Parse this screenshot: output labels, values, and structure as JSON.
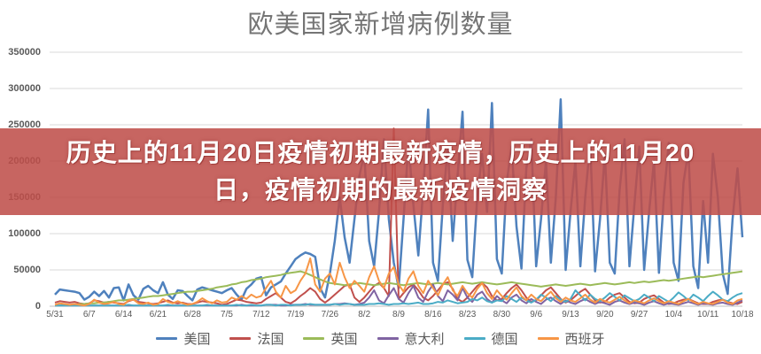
{
  "page": {
    "background": "#ffffff"
  },
  "chart": {
    "title": "欧美国家新增病例数量",
    "title_color": "#757575",
    "axis_label_color": "#595959",
    "grid_color": "#d9d9d9",
    "axis_line_color": "#bfbfbf"
  },
  "banner": {
    "line1": "历史上的11月20日疫情初期最新疫情，历史上的11月20",
    "line2": "日，疫情初期的最新疫情洞察",
    "background_color": "#bf4e49",
    "opacity": 0.87,
    "text_color": "#ffffff"
  },
  "chart_data": {
    "type": "line",
    "title": "欧美国家新增病例数量",
    "xlabel": "",
    "ylabel": "",
    "grid": true,
    "legend_position": "bottom",
    "ylim": [
      0,
      350000
    ],
    "y_ticks": [
      0,
      50000,
      100000,
      150000,
      200000,
      250000,
      300000,
      350000
    ],
    "x_tick_labels": [
      "5/31",
      "6/7",
      "6/14",
      "6/21",
      "6/28",
      "7/5",
      "7/12",
      "7/19",
      "7/26",
      "8/2",
      "8/9",
      "8/16",
      "8/23",
      "8/30",
      "9/6",
      "9/13",
      "9/20",
      "9/27",
      "10/4",
      "10/11",
      "10/18"
    ],
    "x_unit": "date (daily points, 5/31–10/18)",
    "values_unit": "new cases per day, stored in thousands",
    "unit_scale": 1000,
    "series": [
      {
        "id": "us",
        "name": "美国",
        "color": "#4f81bd",
        "values": [
          16,
          23,
          22,
          21,
          20,
          18,
          9,
          13,
          20,
          14,
          21,
          12,
          25,
          26,
          8,
          30,
          15,
          9,
          24,
          28,
          22,
          18,
          33,
          16,
          10,
          22,
          21,
          14,
          8,
          23,
          26,
          24,
          22,
          20,
          18,
          22,
          25,
          16,
          9,
          24,
          30,
          38,
          40,
          15,
          26,
          30,
          34,
          45,
          55,
          65,
          70,
          74,
          72,
          68,
          25,
          12,
          45,
          90,
          150,
          95,
          60,
          120,
          180,
          210,
          90,
          55,
          130,
          230,
          120,
          60,
          25,
          120,
          225,
          140,
          70,
          160,
          271,
          60,
          35,
          140,
          220,
          90,
          180,
          268,
          64,
          40,
          150,
          210,
          130,
          280,
          65,
          45,
          170,
          220,
          110,
          52,
          190,
          230,
          55,
          120,
          200,
          60,
          150,
          285,
          50,
          130,
          200,
          55,
          150,
          225,
          48,
          120,
          210,
          60,
          45,
          160,
          230,
          55,
          140,
          220,
          50,
          130,
          200,
          46,
          150,
          225,
          60,
          35,
          170,
          215,
          55,
          25,
          145,
          60,
          210,
          150,
          45,
          17,
          120,
          190,
          95
        ]
      },
      {
        "id": "france",
        "name": "法国",
        "color": "#c0504d",
        "values": [
          5,
          7,
          6,
          5,
          6,
          4,
          3,
          4,
          8,
          7,
          5,
          6,
          5,
          4,
          3,
          7,
          9,
          6,
          5,
          4,
          3,
          4,
          6,
          8,
          5,
          4,
          5,
          3,
          3,
          5,
          7,
          6,
          5,
          4,
          2,
          3,
          6,
          9,
          8,
          6,
          5,
          4,
          5,
          10,
          14,
          18,
          12,
          6,
          4,
          8,
          14,
          19,
          25,
          20,
          10,
          5,
          10,
          16,
          22,
          28,
          30,
          12,
          6,
          12,
          20,
          28,
          32,
          25,
          14,
          245,
          10,
          18,
          26,
          30,
          22,
          12,
          8,
          14,
          22,
          30,
          33,
          24,
          10,
          6,
          12,
          20,
          28,
          32,
          26,
          14,
          8,
          10,
          18,
          25,
          30,
          22,
          12,
          6,
          8,
          15,
          22,
          26,
          18,
          10,
          5,
          8,
          14,
          20,
          24,
          16,
          8,
          5,
          6,
          12,
          16,
          18,
          12,
          6,
          4,
          5,
          10,
          13,
          15,
          10,
          5,
          3,
          4,
          7,
          9,
          10,
          7,
          4,
          3,
          3,
          6,
          8,
          9,
          6,
          4,
          3,
          6
        ]
      },
      {
        "id": "uk",
        "name": "英国",
        "color": "#9bbb59",
        "values": [
          1,
          1,
          2,
          2,
          2,
          3,
          3,
          4,
          4,
          5,
          5,
          6,
          7,
          8,
          8,
          9,
          10,
          11,
          12,
          13,
          14,
          14,
          15,
          16,
          17,
          18,
          19,
          20,
          20,
          21,
          22,
          23,
          24,
          26,
          27,
          28,
          30,
          31,
          33,
          34,
          36,
          37,
          38,
          40,
          41,
          42,
          43,
          45,
          46,
          47,
          48,
          46,
          43,
          40,
          37,
          34,
          32,
          31,
          30,
          29,
          30,
          31,
          32,
          31,
          30,
          29,
          30,
          31,
          32,
          31,
          30,
          29,
          30,
          31,
          32,
          31,
          30,
          31,
          32,
          31,
          30,
          31,
          32,
          33,
          32,
          31,
          32,
          33,
          32,
          31,
          30,
          31,
          32,
          33,
          32,
          31,
          30,
          29,
          28,
          27,
          28,
          29,
          30,
          29,
          28,
          29,
          30,
          31,
          30,
          29,
          30,
          31,
          32,
          31,
          30,
          31,
          32,
          33,
          32,
          33,
          34,
          33,
          34,
          35,
          36,
          35,
          36,
          37,
          38,
          39,
          40,
          41,
          40,
          41,
          42,
          43,
          44,
          45,
          46,
          47,
          48
        ]
      },
      {
        "id": "italy",
        "name": "意大利",
        "color": "#8064a2",
        "values": [
          1,
          1,
          1,
          1,
          1,
          1,
          1,
          1,
          1,
          1,
          1,
          1,
          1,
          1,
          1,
          1,
          1,
          1,
          1,
          1,
          1,
          1,
          1,
          1,
          1,
          1,
          1,
          1,
          1,
          1,
          1,
          1,
          1,
          1,
          1,
          1,
          1,
          1,
          2,
          1,
          1,
          1,
          1,
          2,
          2,
          2,
          1,
          1,
          2,
          2,
          2,
          3,
          2,
          2,
          2,
          2,
          2,
          3,
          3,
          4,
          3,
          2,
          3,
          5,
          12,
          22,
          8,
          4,
          15,
          25,
          10,
          5,
          18,
          28,
          12,
          6,
          20,
          30,
          14,
          7,
          22,
          16,
          8,
          25,
          12,
          6,
          16,
          20,
          10,
          5,
          14,
          8,
          4,
          12,
          16,
          8,
          4,
          10,
          6,
          3,
          9,
          12,
          7,
          3,
          8,
          5,
          3,
          7,
          10,
          6,
          3,
          6,
          4,
          2,
          6,
          8,
          5,
          3,
          5,
          4,
          2,
          5,
          7,
          4,
          2,
          4,
          3,
          2,
          4,
          6,
          4,
          2,
          4,
          3,
          2,
          4,
          5,
          3,
          2,
          5,
          8
        ]
      },
      {
        "id": "germany",
        "name": "德国",
        "color": "#4bacc6",
        "values": [
          1,
          1,
          1,
          1,
          1,
          1,
          1,
          1,
          1,
          1,
          1,
          1,
          1,
          1,
          1,
          2,
          1,
          1,
          1,
          1,
          1,
          1,
          1,
          2,
          1,
          1,
          1,
          1,
          1,
          1,
          1,
          2,
          1,
          1,
          1,
          1,
          1,
          2,
          1,
          1,
          2,
          1,
          1,
          2,
          2,
          1,
          2,
          2,
          1,
          2,
          2,
          2,
          3,
          2,
          2,
          2,
          2,
          3,
          2,
          3,
          3,
          2,
          2,
          2,
          3,
          3,
          4,
          3,
          2,
          3,
          3,
          4,
          3,
          4,
          5,
          3,
          3,
          4,
          6,
          5,
          8,
          6,
          4,
          5,
          6,
          10,
          8,
          12,
          7,
          5,
          8,
          7,
          14,
          10,
          6,
          12,
          8,
          5,
          9,
          16,
          12,
          7,
          14,
          9,
          6,
          10,
          22,
          15,
          8,
          16,
          10,
          7,
          12,
          18,
          13,
          8,
          15,
          11,
          7,
          10,
          16,
          12,
          7,
          14,
          10,
          6,
          12,
          19,
          14,
          8,
          16,
          12,
          7,
          14,
          20,
          15,
          9,
          7,
          12,
          16,
          18
        ]
      },
      {
        "id": "spain",
        "name": "西班牙",
        "color": "#f79646",
        "values": [
          2,
          4,
          3,
          2,
          3,
          2,
          1,
          3,
          9,
          5,
          3,
          4,
          6,
          3,
          2,
          8,
          9,
          4,
          3,
          5,
          2,
          3,
          10,
          6,
          4,
          7,
          4,
          2,
          3,
          6,
          11,
          7,
          4,
          8,
          5,
          6,
          12,
          9,
          14,
          10,
          16,
          12,
          14,
          25,
          35,
          20,
          12,
          28,
          18,
          22,
          35,
          45,
          66,
          30,
          20,
          38,
          45,
          30,
          60,
          40,
          25,
          35,
          28,
          20,
          40,
          55,
          35,
          25,
          45,
          54,
          30,
          20,
          38,
          48,
          28,
          18,
          35,
          25,
          15,
          30,
          40,
          22,
          14,
          28,
          18,
          12,
          24,
          32,
          18,
          10,
          22,
          14,
          9,
          18,
          26,
          14,
          8,
          16,
          10,
          7,
          14,
          20,
          11,
          6,
          12,
          8,
          6,
          11,
          16,
          9,
          5,
          10,
          7,
          5,
          9,
          13,
          8,
          4,
          8,
          6,
          4,
          8,
          11,
          7,
          4,
          7,
          5,
          3,
          7,
          10,
          6,
          3,
          6,
          4,
          3,
          6,
          9,
          5,
          3,
          8,
          10
        ]
      }
    ]
  }
}
